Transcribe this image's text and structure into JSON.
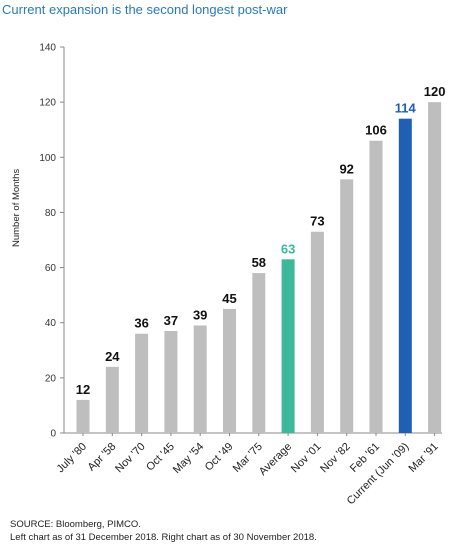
{
  "chart_data": {
    "type": "bar",
    "title": "Current expansion is the second longest post-war",
    "ylabel": "Number of Months",
    "xlabel": "",
    "ylim": [
      0,
      140
    ],
    "yticks": [
      0,
      20,
      40,
      60,
      80,
      100,
      120,
      140
    ],
    "grid": false,
    "categories": [
      "July '80",
      "Apr '58",
      "Nov '70",
      "Oct '45",
      "May '54",
      "Oct '49",
      "Mar '75",
      "Average",
      "Nov '01",
      "Nov '82",
      "Feb '61",
      "Current (Jun '09)",
      "Mar '91"
    ],
    "values": [
      12,
      24,
      36,
      37,
      39,
      45,
      58,
      63,
      73,
      92,
      106,
      114,
      120
    ],
    "colors": {
      "default": "#bebebe",
      "Average": "#3db89a",
      "Current (Jun '09)": "#1f5fb4",
      "label_default": "#111111",
      "label_Average": "#3db89a",
      "label_Current (Jun '09)": "#1f5fb4"
    }
  },
  "footer": {
    "source": "SOURCE: Bloomberg, PIMCO.",
    "note": "Left chart as of 31 December 2018. Right chart as of 30 November 2018."
  }
}
